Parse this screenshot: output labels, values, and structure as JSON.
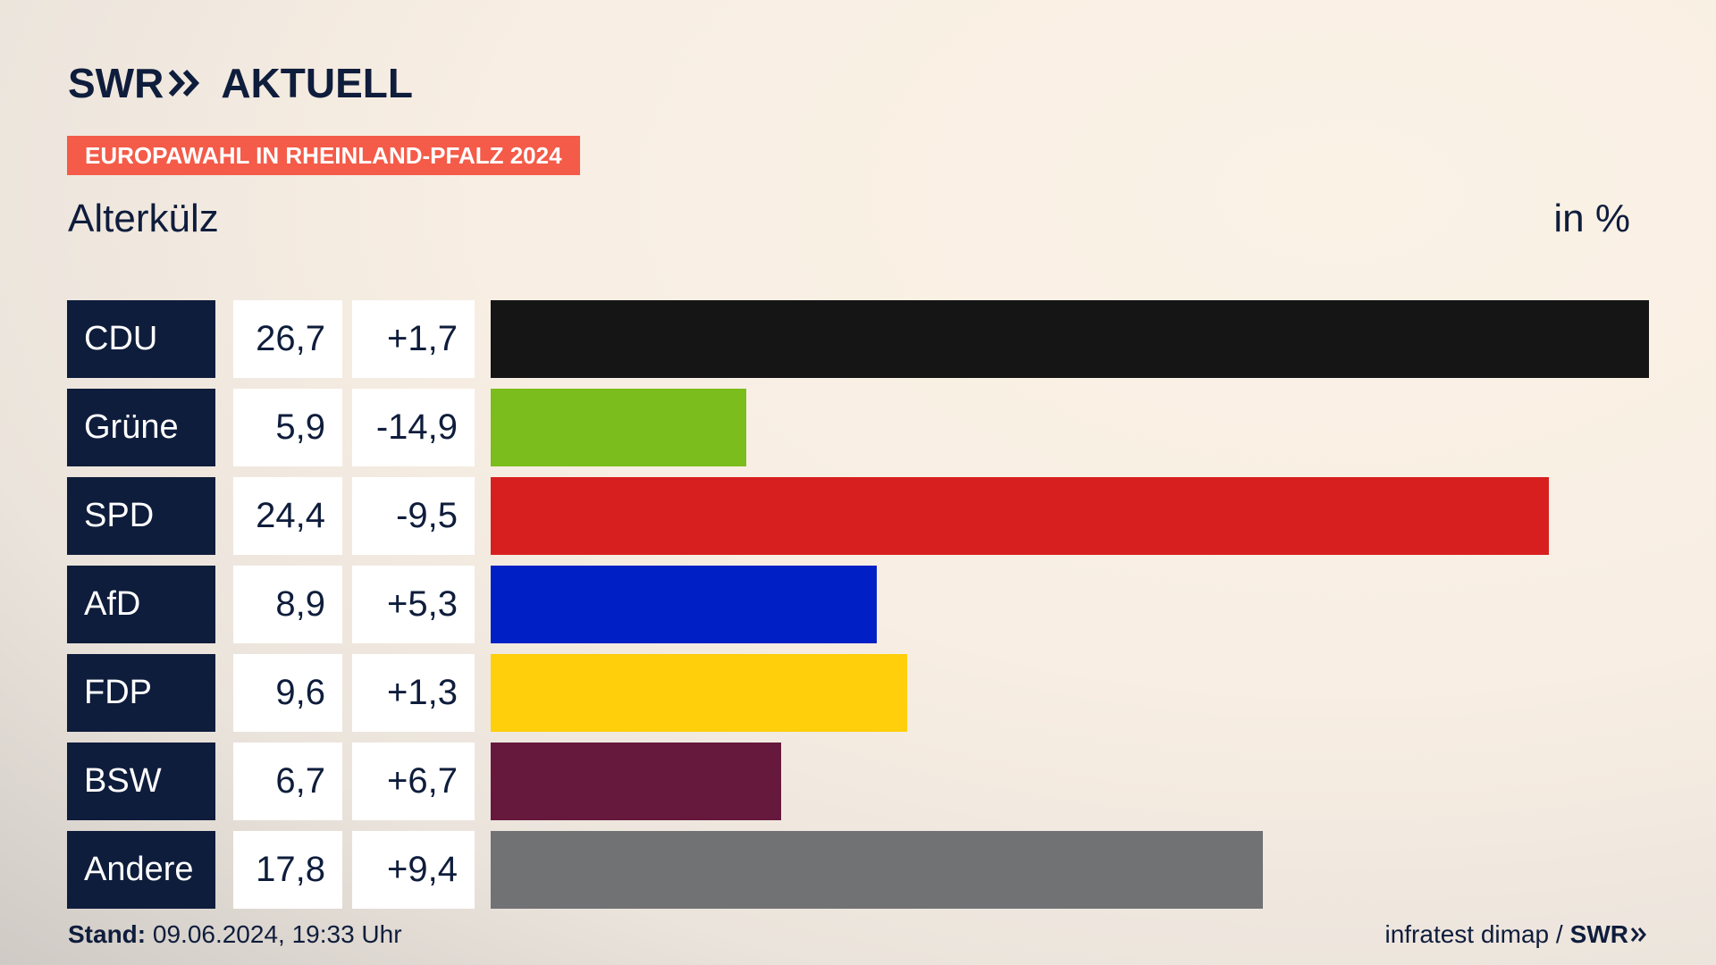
{
  "header": {
    "logo_left": "SWR",
    "logo_right": "AKTUELL",
    "badge": "EUROPAWAHL IN RHEINLAND-PFALZ 2024",
    "colors": {
      "brand_dark": "#0f1d3c",
      "badge": "#f45b48"
    }
  },
  "chart_data": {
    "type": "bar",
    "title": "",
    "subtitle": "Alterkülz",
    "unit_label": "in %",
    "xlim": [
      0,
      26.7
    ],
    "categories": [
      "CDU",
      "Grüne",
      "SPD",
      "AfD",
      "FDP",
      "BSW",
      "Andere"
    ],
    "rows": [
      {
        "party": "CDU",
        "value_label": "26,7",
        "diff_label": "+1,7",
        "value": 26.7,
        "diff": 1.7,
        "color": "#151515"
      },
      {
        "party": "Grüne",
        "value_label": "5,9",
        "diff_label": "-14,9",
        "value": 5.9,
        "diff": -14.9,
        "color": "#7bbd1c"
      },
      {
        "party": "SPD",
        "value_label": "24,4",
        "diff_label": "-9,5",
        "value": 24.4,
        "diff": -9.5,
        "color": "#d71f1f"
      },
      {
        "party": "AfD",
        "value_label": "8,9",
        "diff_label": "+5,3",
        "value": 8.9,
        "diff": 5.3,
        "color": "#0020c6"
      },
      {
        "party": "FDP",
        "value_label": "9,6",
        "diff_label": "+1,3",
        "value": 9.6,
        "diff": 1.3,
        "color": "#fecf0a"
      },
      {
        "party": "BSW",
        "value_label": "6,7",
        "diff_label": "+6,7",
        "value": 6.7,
        "diff": 6.7,
        "color": "#66183d"
      },
      {
        "party": "Andere",
        "value_label": "17,8",
        "diff_label": "+9,4",
        "value": 17.8,
        "diff": 9.4,
        "color": "#717274"
      }
    ]
  },
  "footer": {
    "stand_label": "Stand:",
    "stand_value": "09.06.2024, 19:33 Uhr",
    "source": "infratest dimap /",
    "brand": "SWR"
  }
}
